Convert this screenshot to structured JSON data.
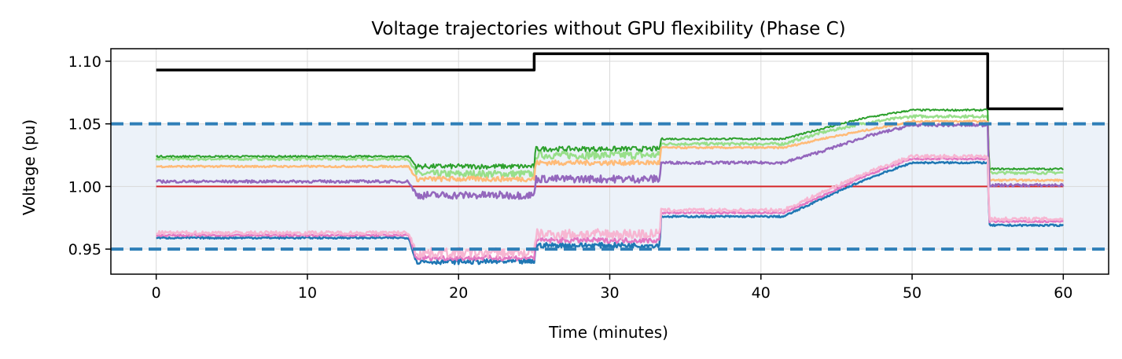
{
  "chart_data": {
    "type": "line",
    "title": "Voltage trajectories without GPU flexibility (Phase C)",
    "xlabel": "Time (minutes)",
    "ylabel": "Voltage (pu)",
    "xlim": [
      -3,
      63
    ],
    "ylim": [
      0.93,
      1.11
    ],
    "xticks": [
      0,
      10,
      20,
      30,
      40,
      50,
      60
    ],
    "xtick_labels": [
      "0",
      "10",
      "20",
      "30",
      "40",
      "50",
      "60"
    ],
    "yticks": [
      0.95,
      1.0,
      1.05,
      1.1
    ],
    "ytick_labels": [
      "0.95",
      "1.00",
      "1.05",
      "1.10"
    ],
    "grid": true,
    "limit_band": {
      "lower": 0.95,
      "upper": 1.05,
      "color": "#dce8f4"
    },
    "limit_line_color": "#2f7fb8",
    "colors": {
      "black": "#000000",
      "red": "#d62728",
      "green": "#2ca02c",
      "light_green": "#98df8a",
      "light_orange": "#ffbb78",
      "purple": "#9467bd",
      "pink": "#f7b6d2",
      "blue": "#1f77b4",
      "magenta": "#e377c2"
    },
    "series": [
      {
        "color": "#000000",
        "width": 3.5,
        "noise": 0,
        "x": [
          0,
          25,
          25,
          55,
          55,
          60
        ],
        "y": [
          1.093,
          1.093,
          1.106,
          1.106,
          1.062,
          1.062
        ]
      },
      {
        "color": "#d62728",
        "width": 2,
        "noise": 0,
        "x": [
          0,
          60
        ],
        "y": [
          1.0,
          1.0
        ]
      },
      {
        "color": "#98df8a",
        "width": 2.5,
        "noise": 0.003,
        "x": [
          0,
          16.7,
          17.2,
          25,
          25.1,
          33.3,
          33.4,
          41.5,
          44,
          47,
          50,
          55,
          55.1,
          60
        ],
        "y": [
          1.022,
          1.022,
          1.01,
          1.01,
          1.025,
          1.025,
          1.034,
          1.034,
          1.043,
          1.051,
          1.056,
          1.056,
          1.011,
          1.011
        ]
      },
      {
        "color": "#2ca02c",
        "width": 2,
        "noise": 0.002,
        "x": [
          0,
          16.7,
          17.2,
          25,
          25.1,
          33.3,
          33.4,
          41.5,
          44,
          47,
          50,
          55,
          55.1,
          60
        ],
        "y": [
          1.024,
          1.024,
          1.016,
          1.016,
          1.03,
          1.03,
          1.038,
          1.038,
          1.046,
          1.055,
          1.061,
          1.061,
          1.014,
          1.014
        ]
      },
      {
        "color": "#ffbb78",
        "width": 2.5,
        "noise": 0.002,
        "x": [
          0,
          16.7,
          17.2,
          25,
          25.1,
          33.3,
          33.4,
          41.5,
          44,
          47,
          50,
          55,
          55.1,
          60
        ],
        "y": [
          1.016,
          1.016,
          1.006,
          1.006,
          1.019,
          1.019,
          1.031,
          1.031,
          1.038,
          1.045,
          1.052,
          1.052,
          1.005,
          1.005
        ]
      },
      {
        "color": "#9467bd",
        "width": 2.5,
        "noise": 0.003,
        "x": [
          0,
          16.7,
          17.2,
          25,
          25.1,
          33.3,
          33.4,
          41.5,
          44,
          47,
          50,
          55,
          55.1,
          60
        ],
        "y": [
          1.004,
          1.004,
          0.993,
          0.993,
          1.006,
          1.006,
          1.019,
          1.019,
          1.028,
          1.04,
          1.049,
          1.049,
          1.001,
          1.001
        ]
      },
      {
        "color": "#1f77b4",
        "width": 2.5,
        "noise": 0.002,
        "x": [
          0,
          16.7,
          17.2,
          25,
          25.1,
          33.3,
          33.4,
          41.5,
          44,
          47,
          50,
          55,
          55.1,
          60
        ],
        "y": [
          0.959,
          0.959,
          0.94,
          0.94,
          0.953,
          0.953,
          0.976,
          0.976,
          0.99,
          1.006,
          1.019,
          1.019,
          0.969,
          0.969
        ]
      },
      {
        "color": "#e377c2",
        "width": 2.5,
        "noise": 0.002,
        "x": [
          0,
          16.7,
          17.2,
          25,
          25.1,
          33.3,
          33.4,
          41.5,
          44,
          47,
          50,
          55,
          55.1,
          60
        ],
        "y": [
          0.961,
          0.961,
          0.943,
          0.943,
          0.957,
          0.957,
          0.979,
          0.979,
          0.992,
          1.009,
          1.022,
          1.022,
          0.972,
          0.972
        ]
      },
      {
        "color": "#f7b6d2",
        "width": 2.5,
        "noise": 0.004,
        "x": [
          0,
          16.7,
          17.2,
          25,
          25.1,
          33.3,
          33.4,
          41.5,
          44,
          47,
          50,
          55,
          55.1,
          60
        ],
        "y": [
          0.963,
          0.963,
          0.947,
          0.947,
          0.962,
          0.962,
          0.981,
          0.981,
          0.995,
          1.011,
          1.024,
          1.024,
          0.974,
          0.974
        ]
      }
    ]
  }
}
